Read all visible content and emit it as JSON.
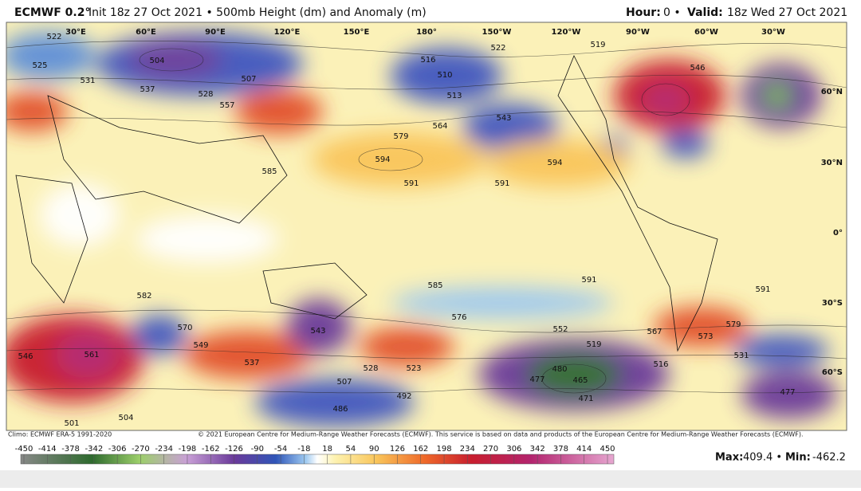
{
  "header": {
    "title": "ECMWF 0.2°",
    "subtitle": "Init 18z 27 Oct 2021 • 500mb Height (dm) and Anomaly (m)",
    "hour_label": "Hour:",
    "hour": "0 •",
    "valid_label": "Valid:",
    "valid": "18z Wed 27 Oct 2021"
  },
  "map": {
    "lon_labels": [
      "30°E",
      "60°E",
      "90°E",
      "120°E",
      "150°E",
      "180°",
      "150°W",
      "120°W",
      "90°W",
      "60°W",
      "30°W"
    ],
    "lat_labels": [
      "60°N",
      "30°N",
      "0°",
      "30°S",
      "60°S"
    ],
    "contour_labels": [
      "522",
      "504",
      "507",
      "537",
      "528",
      "525",
      "531",
      "557",
      "585",
      "594",
      "579",
      "591",
      "564",
      "543",
      "516",
      "510",
      "513",
      "522",
      "594",
      "591",
      "546",
      "519",
      "591",
      "591",
      "582",
      "570",
      "549",
      "537",
      "543",
      "561",
      "546",
      "528",
      "507",
      "486",
      "504",
      "501",
      "585",
      "576",
      "552",
      "567",
      "573",
      "579",
      "516",
      "531",
      "477",
      "480",
      "465",
      "471",
      "477",
      "492",
      "523",
      "519"
    ]
  },
  "footer": {
    "climo": "Climo: ECMWF ERA-5 1991-2020",
    "copyright": "© 2021 European Centre for Medium-Range Weather Forecasts (ECMWF). This service is based on data and products of the European Centre for Medium-Range Weather Forecasts (ECMWF).",
    "colorbar_ticks": [
      -450,
      -414,
      -378,
      -342,
      -306,
      -270,
      -234,
      -198,
      -162,
      -126,
      -90,
      -54,
      -18,
      18,
      54,
      90,
      126,
      162,
      198,
      234,
      270,
      306,
      342,
      378,
      414,
      450
    ],
    "max_label": "Max:",
    "max": "409.4 •",
    "min_label": "Min:",
    "min": "-462.2"
  }
}
